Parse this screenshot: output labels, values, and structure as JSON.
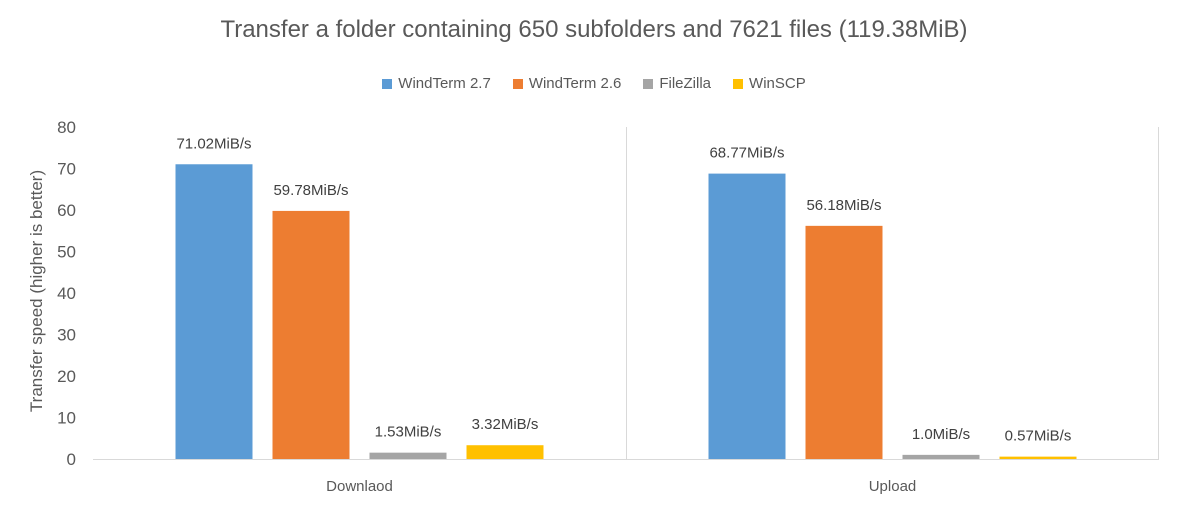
{
  "chart_data": {
    "type": "bar",
    "title": "Transfer a folder containing 650 subfolders and 7621 files (119.38MiB)",
    "xlabel": "",
    "ylabel": "Transfer speed (higher is better)",
    "ylim": [
      0,
      80
    ],
    "yticks": [
      "0",
      "10",
      "20",
      "30",
      "40",
      "50",
      "60",
      "70",
      "80"
    ],
    "categories": [
      "Downlaod",
      "Upload"
    ],
    "legend_position": "top",
    "grid": false,
    "series": [
      {
        "name": "WindTerm 2.7",
        "color": "#5B9BD5",
        "values": [
          71.02,
          68.77
        ],
        "labels": [
          "71.02MiB/s",
          "68.77MiB/s"
        ]
      },
      {
        "name": "WindTerm 2.6",
        "color": "#ED7D31",
        "values": [
          59.78,
          56.18
        ],
        "labels": [
          "59.78MiB/s",
          "56.18MiB/s"
        ]
      },
      {
        "name": "FileZilla",
        "color": "#A5A5A5",
        "values": [
          1.53,
          1.0
        ],
        "labels": [
          "1.53MiB/s",
          "1.0MiB/s"
        ]
      },
      {
        "name": "WinSCP",
        "color": "#FFC000",
        "values": [
          3.32,
          0.57
        ],
        "labels": [
          "3.32MiB/s",
          "0.57MiB/s"
        ]
      }
    ]
  }
}
